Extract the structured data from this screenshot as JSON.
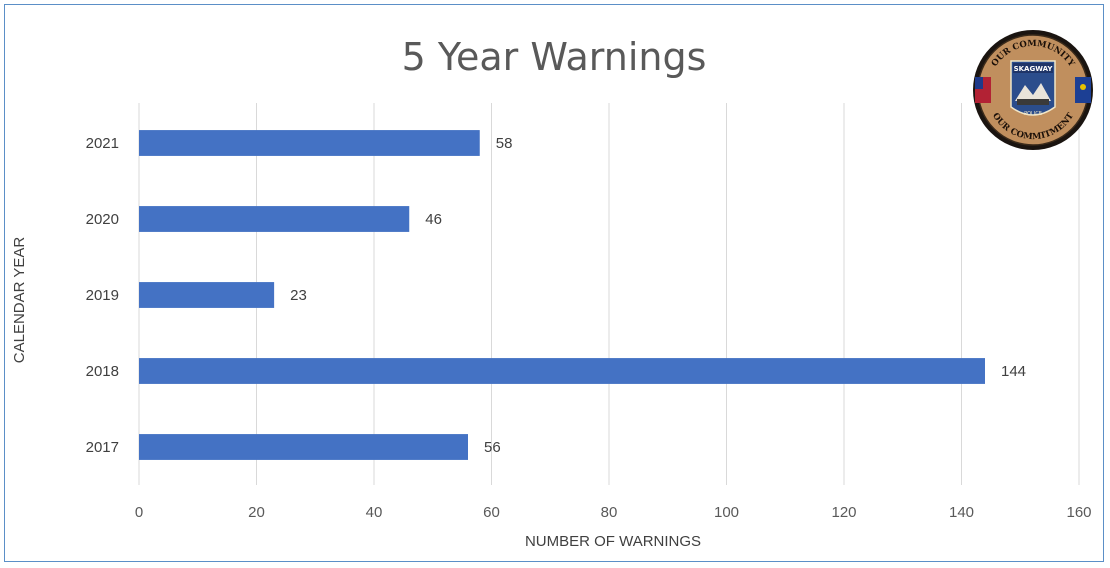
{
  "chart_data": {
    "type": "bar",
    "orientation": "horizontal",
    "title": "5 Year Warnings",
    "xlabel": "NUMBER OF WARNINGS",
    "ylabel": "CALENDAR YEAR",
    "categories": [
      "2021",
      "2020",
      "2019",
      "2018",
      "2017"
    ],
    "values": [
      58,
      46,
      23,
      144,
      56
    ],
    "xlim": [
      0,
      160
    ],
    "xticks": [
      "0",
      "20",
      "40",
      "60",
      "80",
      "100",
      "120",
      "140",
      "160"
    ],
    "grid": true,
    "data_labels": true,
    "bar_color": "#4472c4"
  },
  "seal": {
    "top_text": "OUR COMMUNITY",
    "bottom_text": "OUR COMMITMENT",
    "center_text": "SKAGWAY",
    "sub_text": "POLICE"
  }
}
